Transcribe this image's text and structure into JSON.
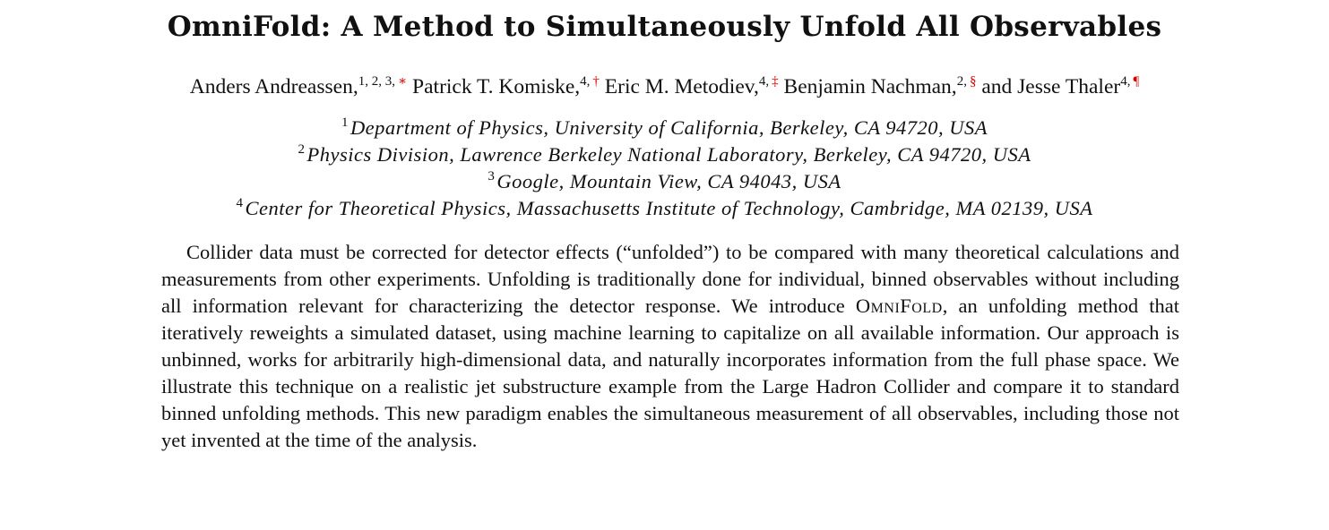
{
  "title": "OmniFold: A Method to Simultaneously Unfold All Observables",
  "authors": [
    {
      "name": "Anders Andreassen,",
      "affil": "1, 2, 3,",
      "mark": "∗"
    },
    {
      "name": "Patrick T. Komiske,",
      "affil": "4,",
      "mark": "†"
    },
    {
      "name": "Eric M. Metodiev,",
      "affil": "4,",
      "mark": "‡"
    },
    {
      "name": "Benjamin Nachman,",
      "affil": "2,",
      "mark": "§"
    },
    {
      "name": "and Jesse Thaler",
      "affil": "4,",
      "mark": "¶"
    }
  ],
  "affiliations": [
    {
      "num": "1",
      "text": "Department of Physics, University of California, Berkeley, CA 94720, USA"
    },
    {
      "num": "2",
      "text": "Physics Division, Lawrence Berkeley National Laboratory, Berkeley, CA 94720, USA"
    },
    {
      "num": "3",
      "text": "Google, Mountain View, CA 94043, USA"
    },
    {
      "num": "4",
      "text": "Center for Theoretical Physics, Massachusetts Institute of Technology, Cambridge, MA 02139, USA"
    }
  ],
  "abstract": {
    "part1": "Collider data must be corrected for detector effects (“unfolded”) to be compared with many theoretical calculations and measurements from other experiments. Unfolding is traditionally done for individual, binned observables without including all information relevant for characterizing the detector response.  We introduce ",
    "method_name": "OmniFold",
    "part2": ", an unfolding method that iteratively reweights a simulated dataset, using machine learning to capitalize on all available information. Our approach is unbinned, works for arbitrarily high-dimensional data, and naturally incorporates information from the full phase space.  We illustrate this technique on a realistic jet substructure example from the Large Hadron Collider and compare it to standard binned unfolding methods.  This new paradigm enables the simultaneous measurement of all observables, including those not yet invented at the time of the analysis."
  }
}
